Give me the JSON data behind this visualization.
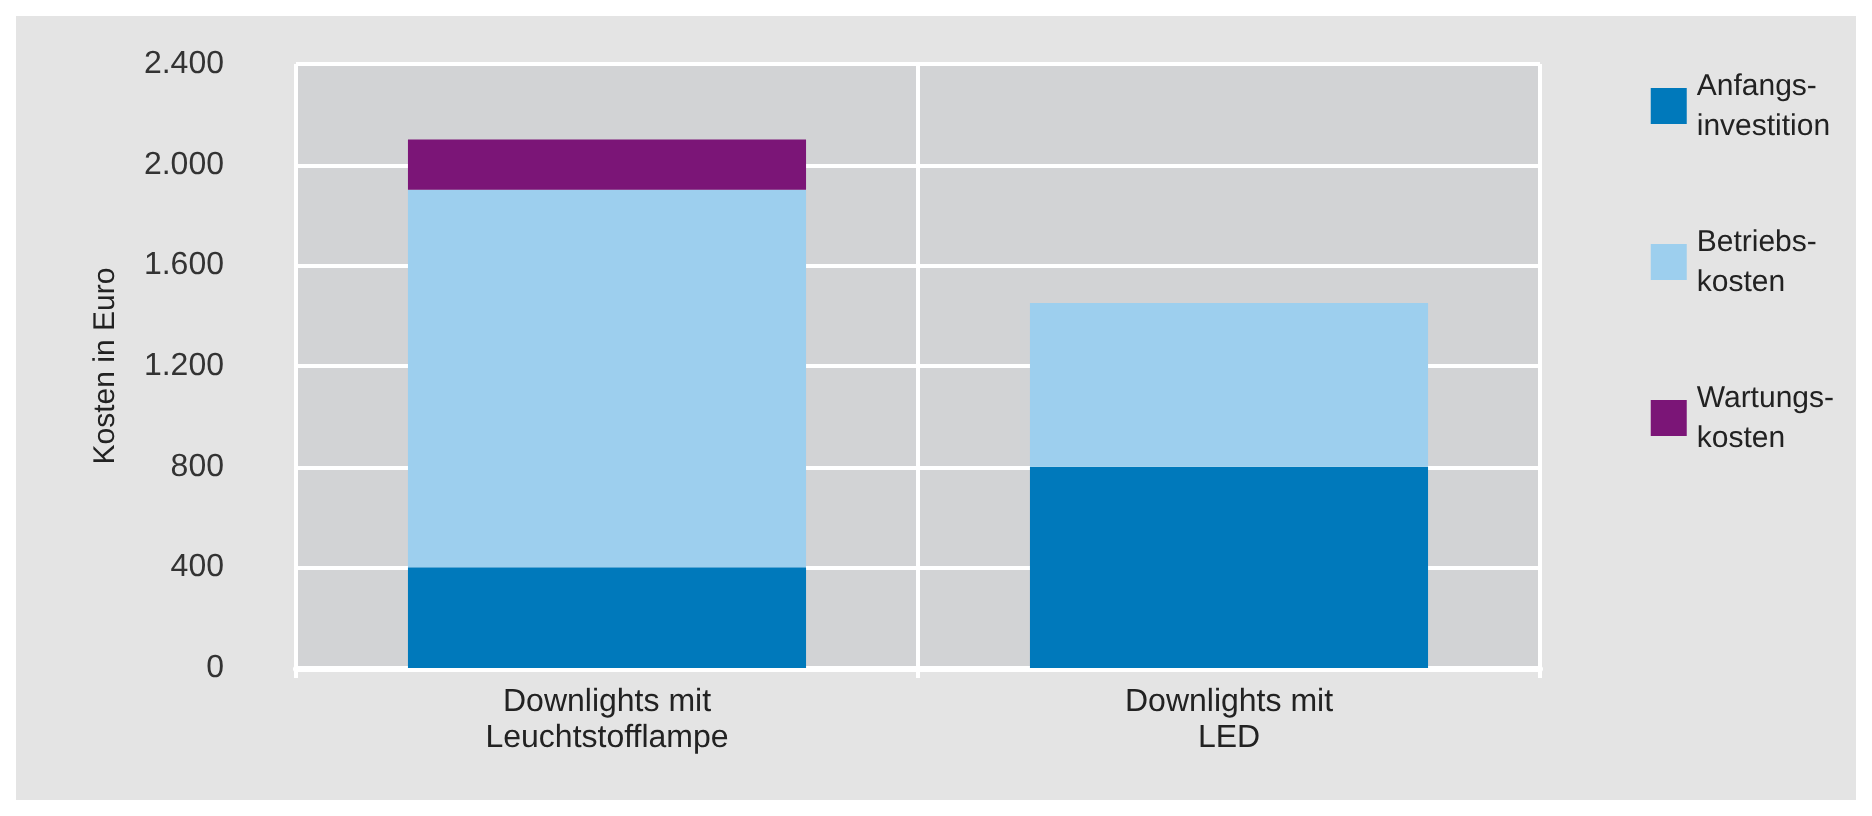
{
  "chart_data": {
    "type": "bar",
    "stacked": true,
    "ylabel": "Kosten in Euro",
    "categories": [
      "Downlights mit\nLeuchtstofflampe",
      "Downlights mit\nLED"
    ],
    "series": [
      {
        "name": "Anfangs-\ninvestition",
        "color": "#0079bb",
        "values": [
          400,
          800
        ]
      },
      {
        "name": "Betriebs-\nkosten",
        "color": "#9dcfee",
        "values": [
          1500,
          650
        ]
      },
      {
        "name": "Wartungs-\nkosten",
        "color": "#7b1577",
        "values": [
          200,
          null
        ]
      }
    ],
    "ylim": [
      0,
      2400
    ],
    "yticks": [
      0,
      400,
      800,
      {
        "value": 1200,
        "label": "1.200"
      },
      {
        "value": 1600,
        "label": "1.600"
      },
      {
        "value": 2000,
        "label": "2.000"
      },
      {
        "value": 2400,
        "label": "2.400"
      }
    ],
    "grid": true,
    "legend": "right"
  }
}
